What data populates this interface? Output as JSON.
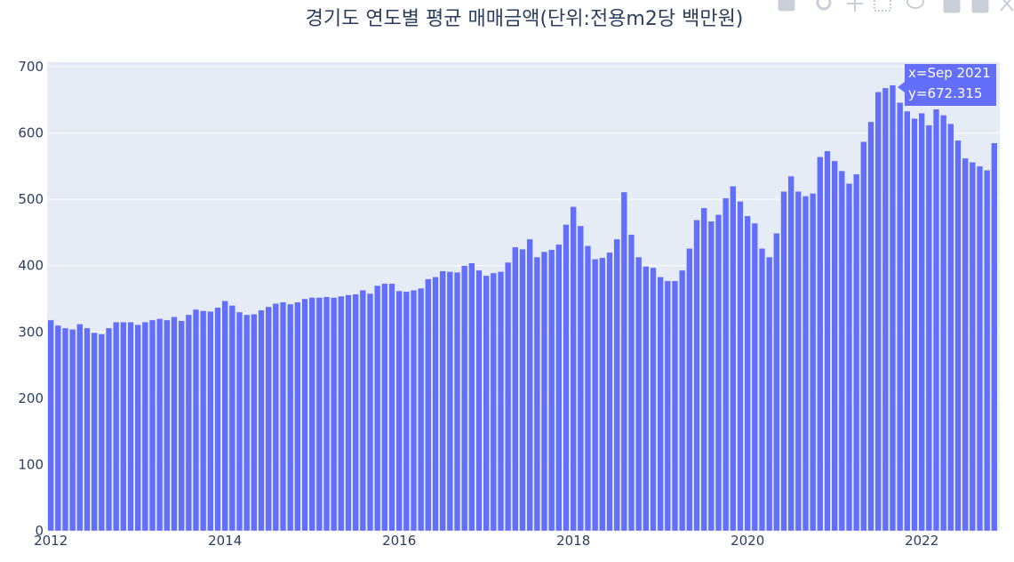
{
  "chart_data": {
    "type": "bar",
    "title": "경기도 연도별 평균 매매금액(단위:전용m2당 백만원)",
    "color": "#636efa",
    "grid": true,
    "x": [
      "2012-01",
      "2012-02",
      "2012-03",
      "2012-04",
      "2012-05",
      "2012-06",
      "2012-07",
      "2012-08",
      "2012-09",
      "2012-10",
      "2012-11",
      "2012-12",
      "2013-01",
      "2013-02",
      "2013-03",
      "2013-04",
      "2013-05",
      "2013-06",
      "2013-07",
      "2013-08",
      "2013-09",
      "2013-10",
      "2013-11",
      "2013-12",
      "2014-01",
      "2014-02",
      "2014-03",
      "2014-04",
      "2014-05",
      "2014-06",
      "2014-07",
      "2014-08",
      "2014-09",
      "2014-10",
      "2014-11",
      "2014-12",
      "2015-01",
      "2015-02",
      "2015-03",
      "2015-04",
      "2015-05",
      "2015-06",
      "2015-07",
      "2015-08",
      "2015-09",
      "2015-10",
      "2015-11",
      "2015-12",
      "2016-01",
      "2016-02",
      "2016-03",
      "2016-04",
      "2016-05",
      "2016-06",
      "2016-07",
      "2016-08",
      "2016-09",
      "2016-10",
      "2016-11",
      "2016-12",
      "2017-01",
      "2017-02",
      "2017-03",
      "2017-04",
      "2017-05",
      "2017-06",
      "2017-07",
      "2017-08",
      "2017-09",
      "2017-10",
      "2017-11",
      "2017-12",
      "2018-01",
      "2018-02",
      "2018-03",
      "2018-04",
      "2018-05",
      "2018-06",
      "2018-07",
      "2018-08",
      "2018-09",
      "2018-10",
      "2018-11",
      "2018-12",
      "2019-01",
      "2019-02",
      "2019-03",
      "2019-04",
      "2019-05",
      "2019-06",
      "2019-07",
      "2019-08",
      "2019-09",
      "2019-10",
      "2019-11",
      "2019-12",
      "2020-01",
      "2020-02",
      "2020-03",
      "2020-04",
      "2020-05",
      "2020-06",
      "2020-07",
      "2020-08",
      "2020-09",
      "2020-10",
      "2020-11",
      "2020-12",
      "2021-01",
      "2021-02",
      "2021-03",
      "2021-04",
      "2021-05",
      "2021-06",
      "2021-07",
      "2021-08",
      "2021-09",
      "2021-10",
      "2021-11",
      "2021-12",
      "2022-01",
      "2022-02",
      "2022-03",
      "2022-04",
      "2022-05",
      "2022-06",
      "2022-07",
      "2022-08",
      "2022-09",
      "2022-10",
      "2022-11"
    ],
    "values": [
      318,
      310,
      306,
      304,
      312,
      306,
      299,
      297,
      306,
      315,
      315,
      315,
      311,
      315,
      318,
      320,
      318,
      323,
      317,
      326,
      334,
      332,
      331,
      337,
      347,
      340,
      330,
      326,
      327,
      333,
      338,
      343,
      345,
      342,
      345,
      350,
      352,
      352,
      353,
      352,
      354,
      356,
      357,
      363,
      358,
      370,
      373,
      373,
      362,
      361,
      363,
      366,
      380,
      383,
      392,
      391,
      390,
      400,
      404,
      393,
      385,
      389,
      391,
      405,
      428,
      425,
      440,
      413,
      421,
      424,
      432,
      462,
      489,
      460,
      430,
      410,
      412,
      420,
      440,
      511,
      447,
      413,
      399,
      397,
      383,
      377,
      377,
      393,
      426,
      469,
      487,
      467,
      477,
      502,
      520,
      497,
      475,
      464,
      426,
      413,
      449,
      512,
      535,
      512,
      505,
      509,
      564,
      573,
      558,
      543,
      524,
      538,
      587,
      617,
      662,
      668,
      672.315,
      646,
      633,
      622,
      630,
      612,
      636,
      627,
      614,
      589,
      562,
      556,
      550,
      544,
      585
    ],
    "xlim": [
      "2011-12",
      "2022-12"
    ],
    "xticks": [
      {
        "value": "2012-01",
        "label": "2012"
      },
      {
        "value": "2014-01",
        "label": "2014"
      },
      {
        "value": "2016-01",
        "label": "2016"
      },
      {
        "value": "2018-01",
        "label": "2018"
      },
      {
        "value": "2020-01",
        "label": "2020"
      },
      {
        "value": "2022-01",
        "label": "2022"
      }
    ],
    "ylim": [
      0,
      700
    ],
    "yticks": [
      0,
      100,
      200,
      300,
      400,
      500,
      600,
      700
    ],
    "hover_text": [
      "x=Sep 2021",
      "y=672.315"
    ]
  }
}
